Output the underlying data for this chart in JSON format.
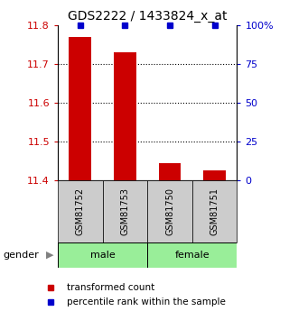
{
  "title": "GDS2222 / 1433824_x_at",
  "samples": [
    "GSM81752",
    "GSM81753",
    "GSM81750",
    "GSM81751"
  ],
  "groups": [
    "male",
    "male",
    "female",
    "female"
  ],
  "transformed_counts": [
    11.77,
    11.73,
    11.445,
    11.425
  ],
  "percentile_ranks": [
    100,
    100,
    100,
    100
  ],
  "y_min": 11.4,
  "y_max": 11.8,
  "y_ticks": [
    11.4,
    11.5,
    11.6,
    11.7,
    11.8
  ],
  "right_y_ticks": [
    0,
    25,
    50,
    75,
    100
  ],
  "right_y_labels": [
    "0",
    "25",
    "50",
    "75",
    "100%"
  ],
  "bar_color": "#cc0000",
  "dot_color": "#0000cc",
  "male_color": "#99ee99",
  "female_color": "#99ee99",
  "sample_box_color": "#cccccc",
  "left_label_color": "#cc0000",
  "right_label_color": "#0000cc",
  "legend_bar_label": "transformed count",
  "legend_dot_label": "percentile rank within the sample",
  "bar_width": 0.5
}
